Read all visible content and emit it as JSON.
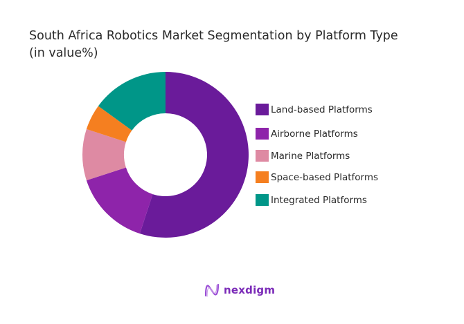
{
  "chart_data": {
    "type": "pie",
    "variant": "donut",
    "title": "South Africa Robotics Market Segmentation by Platform Type",
    "subtitle": "(in value%)",
    "categories": [
      "Land-based Platforms",
      "Airborne Platforms",
      "Marine Platforms",
      "Space-based Platforms",
      "Integrated Platforms"
    ],
    "values": [
      55,
      15,
      10,
      5,
      15
    ],
    "colors": [
      "#6a1b9a",
      "#8e24aa",
      "#de8aa3",
      "#f57f20",
      "#009688"
    ],
    "legend_position": "right",
    "start_angle_deg": 0,
    "direction": "clockwise"
  },
  "header": {
    "title_line1": "South Africa Robotics Market Segmentation by Platform Type",
    "title_line2": "(in value%)"
  },
  "legend": {
    "items": [
      {
        "label": "Land-based Platforms",
        "color": "#6a1b9a"
      },
      {
        "label": "Airborne Platforms",
        "color": "#8e24aa"
      },
      {
        "label": "Marine Platforms",
        "color": "#de8aa3"
      },
      {
        "label": "Space-based Platforms",
        "color": "#f57f20"
      },
      {
        "label": "Integrated Platforms",
        "color": "#009688"
      }
    ]
  },
  "footer": {
    "brand": "nexdigm",
    "brand_color": "#7b2bb8"
  }
}
